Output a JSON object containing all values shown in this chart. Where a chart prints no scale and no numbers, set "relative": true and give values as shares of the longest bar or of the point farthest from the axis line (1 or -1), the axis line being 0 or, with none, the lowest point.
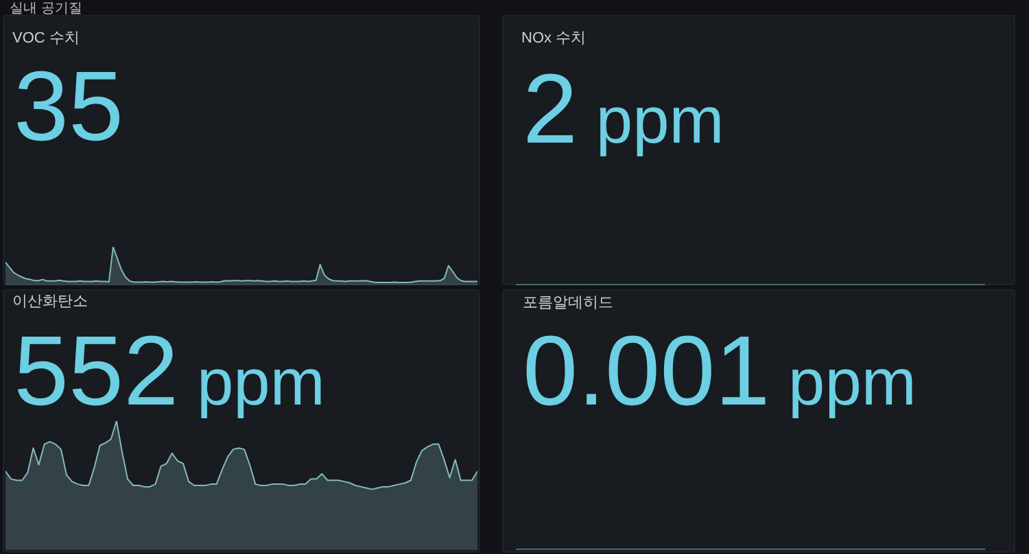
{
  "chart_data": [
    {
      "type": "area",
      "title": "VOC 수치",
      "subtitle": "35",
      "annotations": [
        "실내 공기질"
      ],
      "relative": true,
      "categories": [
        null,
        null,
        null,
        null,
        null,
        null,
        null,
        null,
        null,
        null,
        null,
        null,
        null,
        null,
        null,
        null,
        null,
        null,
        null,
        null,
        null,
        null,
        null,
        null,
        null,
        null,
        null,
        null,
        null,
        null,
        null,
        null,
        null,
        null,
        null,
        null,
        null,
        null,
        null,
        null,
        null,
        null,
        null,
        null,
        null,
        null,
        null,
        null,
        null,
        null,
        null,
        null,
        null,
        null,
        null,
        null,
        null,
        null,
        null,
        null,
        null,
        null,
        null,
        null,
        null,
        null,
        null,
        null,
        null,
        null,
        null,
        null,
        null,
        null,
        null,
        null,
        null,
        null,
        null,
        null,
        null,
        null,
        null,
        null,
        null,
        null,
        null,
        null,
        null,
        null,
        null,
        null,
        null,
        null,
        null,
        null,
        null,
        null,
        null,
        null,
        null,
        null,
        null,
        null,
        null,
        null,
        null,
        null,
        null,
        null,
        null,
        null,
        null,
        null,
        null
      ],
      "color": "#85b9bf",
      "values": [
        0.6,
        0.46,
        0.33,
        0.26,
        0.21,
        0.17,
        0.15,
        0.12,
        0.12,
        0.15,
        0.11,
        0.11,
        0.11,
        0.13,
        0.11,
        0.1,
        0.1,
        0.1,
        0.11,
        0.1,
        0.1,
        0.1,
        0.11,
        0.1,
        0.1,
        0.09,
        1.0,
        0.7,
        0.4,
        0.21,
        0.11,
        0.08,
        0.08,
        0.08,
        0.09,
        0.08,
        0.08,
        0.09,
        0.1,
        0.09,
        0.1,
        0.09,
        0.08,
        0.08,
        0.08,
        0.08,
        0.09,
        0.08,
        0.08,
        0.08,
        0.09,
        0.08,
        0.09,
        0.12,
        0.11,
        0.12,
        0.12,
        0.11,
        0.12,
        0.12,
        0.11,
        0.12,
        0.11,
        0.1,
        0.1,
        0.11,
        0.1,
        0.1,
        0.11,
        0.1,
        0.1,
        0.1,
        0.11,
        0.1,
        0.11,
        0.13,
        0.54,
        0.27,
        0.17,
        0.12,
        0.11,
        0.11,
        0.1,
        0.11,
        0.11,
        0.11,
        0.11,
        0.12,
        0.1,
        0.08,
        0.07,
        0.07,
        0.07,
        0.07,
        0.08,
        0.07,
        0.07,
        0.07,
        0.08,
        0.1,
        0.11,
        0.11,
        0.11,
        0.11,
        0.11,
        0.12,
        0.18,
        0.51,
        0.36,
        0.2,
        0.12,
        0.1,
        0.1,
        0.1,
        0.1
      ]
    },
    {
      "type": "other",
      "title": "NOx 수치",
      "subtitle": "2 ppm"
    },
    {
      "type": "area",
      "title": "이산화탄소",
      "subtitle": "552 ppm",
      "relative": true,
      "categories": [
        null,
        null,
        null,
        null,
        null,
        null,
        null,
        null,
        null,
        null,
        null,
        null,
        null,
        null,
        null,
        null,
        null,
        null,
        null,
        null,
        null,
        null,
        null,
        null,
        null,
        null,
        null,
        null,
        null,
        null,
        null,
        null,
        null,
        null,
        null,
        null,
        null,
        null,
        null,
        null,
        null,
        null,
        null,
        null,
        null,
        null,
        null,
        null,
        null,
        null,
        null,
        null,
        null,
        null,
        null,
        null,
        null,
        null,
        null,
        null,
        null,
        null,
        null,
        null,
        null,
        null,
        null,
        null,
        null,
        null,
        null,
        null,
        null,
        null,
        null,
        null,
        null,
        null,
        null,
        null,
        null,
        null,
        null,
        null,
        null,
        null
      ],
      "color": "#85b9bf",
      "values": [
        0.61,
        0.55,
        0.54,
        0.54,
        0.6,
        0.79,
        0.66,
        0.82,
        0.84,
        0.82,
        0.78,
        0.58,
        0.53,
        0.51,
        0.5,
        0.5,
        0.64,
        0.81,
        0.83,
        0.86,
        1.0,
        0.76,
        0.55,
        0.5,
        0.5,
        0.49,
        0.49,
        0.51,
        0.65,
        0.67,
        0.75,
        0.69,
        0.67,
        0.53,
        0.5,
        0.5,
        0.5,
        0.51,
        0.51,
        0.62,
        0.72,
        0.78,
        0.79,
        0.78,
        0.66,
        0.51,
        0.5,
        0.5,
        0.51,
        0.51,
        0.51,
        0.5,
        0.5,
        0.51,
        0.51,
        0.55,
        0.55,
        0.59,
        0.54,
        0.54,
        0.54,
        0.53,
        0.52,
        0.5,
        0.49,
        0.48,
        0.47,
        0.48,
        0.49,
        0.49,
        0.5,
        0.51,
        0.52,
        0.54,
        0.68,
        0.77,
        0.8,
        0.82,
        0.82,
        0.7,
        0.56,
        0.7,
        0.54,
        0.54,
        0.54,
        0.61
      ]
    },
    {
      "type": "other",
      "title": "포름알데히드",
      "subtitle": "0.001 ppm"
    }
  ]
}
